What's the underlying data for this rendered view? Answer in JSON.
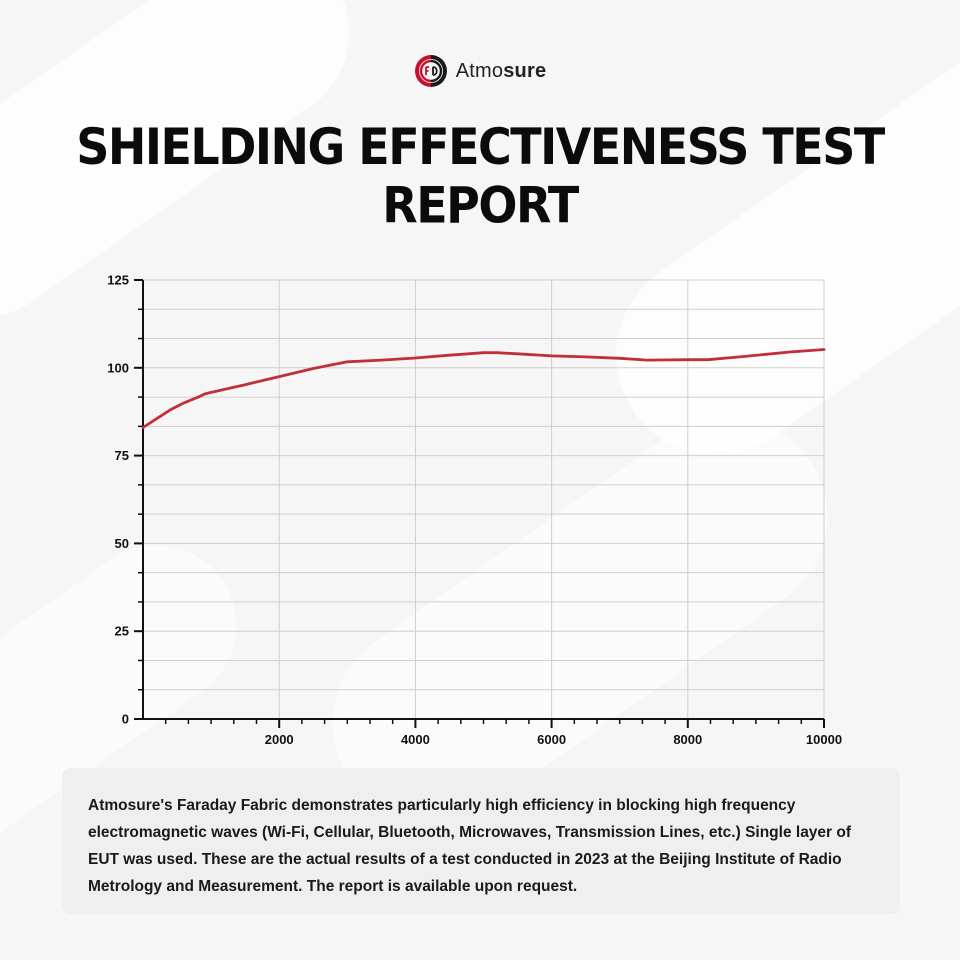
{
  "brand": {
    "name_light": "Atmo",
    "name_bold": "sure",
    "logo_icon": "atmosure-logo-icon",
    "colors": {
      "red": "#c8102e",
      "dark": "#1a1a1a"
    }
  },
  "title": "SHIELDING EFFECTIVENESS TEST REPORT",
  "chart_data": {
    "type": "line",
    "title": "",
    "xlabel": "",
    "ylabel": "",
    "xlim": [
      0,
      10000
    ],
    "ylim": [
      0,
      125
    ],
    "x_ticks": [
      2000,
      4000,
      6000,
      8000,
      10000
    ],
    "y_ticks": [
      0,
      25,
      50,
      75,
      100,
      125
    ],
    "grid": true,
    "legend": "none",
    "line_color": "#c0303a",
    "series": [
      {
        "x": [
          0,
          200,
          400,
          600,
          850,
          900,
          1000,
          1500,
          2000,
          2500,
          3000,
          3500,
          4000,
          4500,
          5000,
          5200,
          5500,
          6000,
          6500,
          7000,
          7400,
          8000,
          8300,
          8800,
          9500,
          10000
        ],
        "y": [
          83,
          85.5,
          88,
          90,
          92,
          92.5,
          93,
          95.2,
          97.5,
          99.8,
          101.7,
          102.2,
          102.8,
          103.6,
          104.3,
          104.3,
          104.0,
          103.4,
          103.1,
          102.7,
          102.2,
          102.3,
          102.3,
          103.2,
          104.5,
          105.2
        ]
      }
    ]
  },
  "caption": "Atmosure's Faraday Fabric demonstrates particularly high efficiency in blocking high frequency electromagnetic waves (Wi-Fi, Cellular, Bluetooth, Microwaves, Transmission Lines, etc.) Single layer of EUT was used. These are the actual results of a test conducted in 2023 at the Beijing Institute of Radio Metrology and Measurement. The report is available upon request."
}
